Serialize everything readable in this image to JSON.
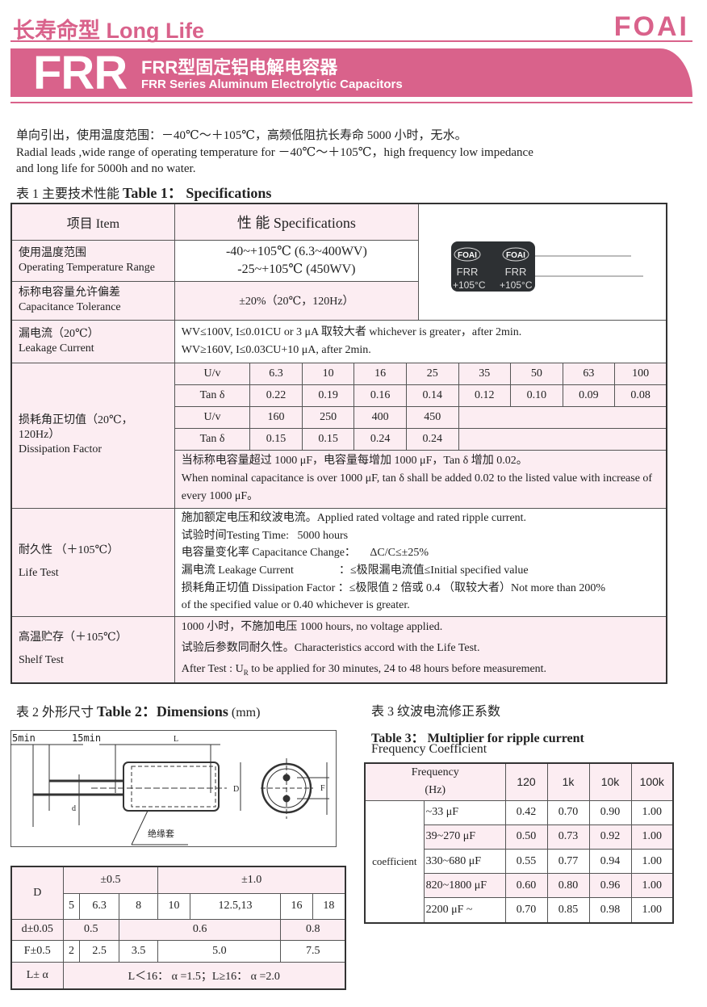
{
  "header": {
    "title": "长寿命型 Long Life",
    "logo": "FOAI",
    "series_code": "FRR",
    "title_cn": "FRR型固定铝电解电容器",
    "title_en": "FRR Series Aluminum Electrolytic Capacitors",
    "brand_color": "#d9628b"
  },
  "intro": {
    "cn": "单向引出，使用温度范围：－40℃～＋105℃，高频低阻抗长寿命 5000 小时，无水。",
    "en1": "Radial leads ,wide range of operating temperature for －40℃～＋105℃，high frequency low impedance",
    "en2": "and long life for 5000h and no water."
  },
  "table1": {
    "caption_cn": "表 1  主要技术性能",
    "caption_en": "Table 1：  Specifications",
    "head_item": "项目 Item",
    "head_spec": "性  能  Specifications",
    "photo_text": {
      "brand": "FOAI",
      "series": "FRR",
      "temp": "+105°C"
    },
    "temp": {
      "cn": "使用温度范围",
      "en": "Operating Temperature Range",
      "v1": "-40~+105℃ (6.3~400WV)",
      "v2": "-25~+105℃ (450WV)"
    },
    "tol": {
      "cn": "标称电容量允许偏差",
      "en": "Capacitance Tolerance",
      "v": "±20%（20℃，120Hz）"
    },
    "leak": {
      "cn": "漏电流（20℃）",
      "en": "Leakage Current",
      "v1": "WV≤100V, I≤0.01CU or 3 μA  取较大者 whichever is greater，after 2min.",
      "v2": "WV≥160V, I≤0.03CU+10 μA,    after 2min."
    },
    "df": {
      "cn": "损耗角正切值（20℃，120Hz）",
      "en": "Dissipation Factor",
      "rows": [
        [
          "U/v",
          "6.3",
          "10",
          "16",
          "25",
          "35",
          "50",
          "63",
          "100"
        ],
        [
          "Tan δ",
          "0.22",
          "0.19",
          "0.16",
          "0.14",
          "0.12",
          "0.10",
          "0.09",
          "0.08"
        ],
        [
          "U/v",
          "160",
          "250",
          "400",
          "450"
        ],
        [
          "Tan δ",
          "0.15",
          "0.15",
          "0.24",
          "0.24"
        ]
      ],
      "note_cn": "当标称电容量超过 1000 μF，电容量每增加 1000 μF，Tan δ 增加 0.02。",
      "note_en": "When nominal capacitance is over 1000 μF, tan δ  shall be added 0.02 to the listed value with increase of every 1000 μF。"
    },
    "life": {
      "cn": "耐久性 （＋105℃）",
      "en": "Life Test",
      "lines": [
        "施加额定电压和纹波电流。Applied rated voltage and rated ripple current.",
        "试验时间Testing Time:   5000 hours",
        "电容量变化率 Capacitance Change：     ΔC/C≤±25%",
        "漏电流 Leakage Current                ：≤极限漏电流值≤Initial specified value",
        "损耗角正切值 Dissipation Factor ：≤极限值 2 倍或 0.4 （取较大者）Not more than 200%",
        "of the specified value or 0.40 whichever is greater."
      ]
    },
    "shelf": {
      "cn": "高温贮存（＋105℃）",
      "en": "Shelf Test",
      "l1": "1000 小时，不施加电压  1000 hours, no voltage applied.",
      "l2": "试验后参数同耐久性。Characteristics accord with the Life Test.",
      "l3a": "After Test : U",
      "l3sub": "R",
      "l3b": " to be applied for 30 minutes, 24 to 48 hours before measurement."
    }
  },
  "table2": {
    "caption_cn": "表 2  外形尺寸",
    "caption_en": "Table 2：Dimensions",
    "caption_unit": "(mm)",
    "drawing": {
      "lead_len": "5min",
      "lead_len2": "15min",
      "L": "L",
      "D": "D",
      "d": "d",
      "F": "F",
      "sleeve": "绝缘套"
    },
    "D": "D",
    "tol1": "±0.5",
    "tol2": "±1.0",
    "diameters": [
      "5",
      "6.3",
      "8",
      "10",
      "12.5,13",
      "16",
      "18"
    ],
    "d_label": "d±0.05",
    "d_vals": [
      "0.5",
      "0.6",
      "0.8"
    ],
    "F_label": "F±0.5",
    "F_vals": [
      "2",
      "2.5",
      "3.5",
      "5.0",
      "7.5"
    ],
    "L_label": "L± α",
    "L_val": "L＜16： α =1.5；L≥16： α =2.0"
  },
  "table3": {
    "caption_cn": "表 3  纹波电流修正系数",
    "caption_en": "Table 3：  Multiplier for ripple current",
    "caption_sub": "Frequency Coefficient",
    "freq_head": "Frequency",
    "freq_unit": "(Hz)",
    "freqs": [
      "120",
      "1k",
      "10k",
      "100k"
    ],
    "coef_label": "coefficient",
    "rows": [
      [
        "~33 μF",
        "0.42",
        "0.70",
        "0.90",
        "1.00"
      ],
      [
        "39~270 μF",
        "0.50",
        "0.73",
        "0.92",
        "1.00"
      ],
      [
        "330~680 μF",
        "0.55",
        "0.77",
        "0.94",
        "1.00"
      ],
      [
        "820~1800 μF",
        "0.60",
        "0.80",
        "0.96",
        "1.00"
      ],
      [
        "2200 μF ~",
        "0.70",
        "0.85",
        "0.98",
        "1.00"
      ]
    ]
  }
}
